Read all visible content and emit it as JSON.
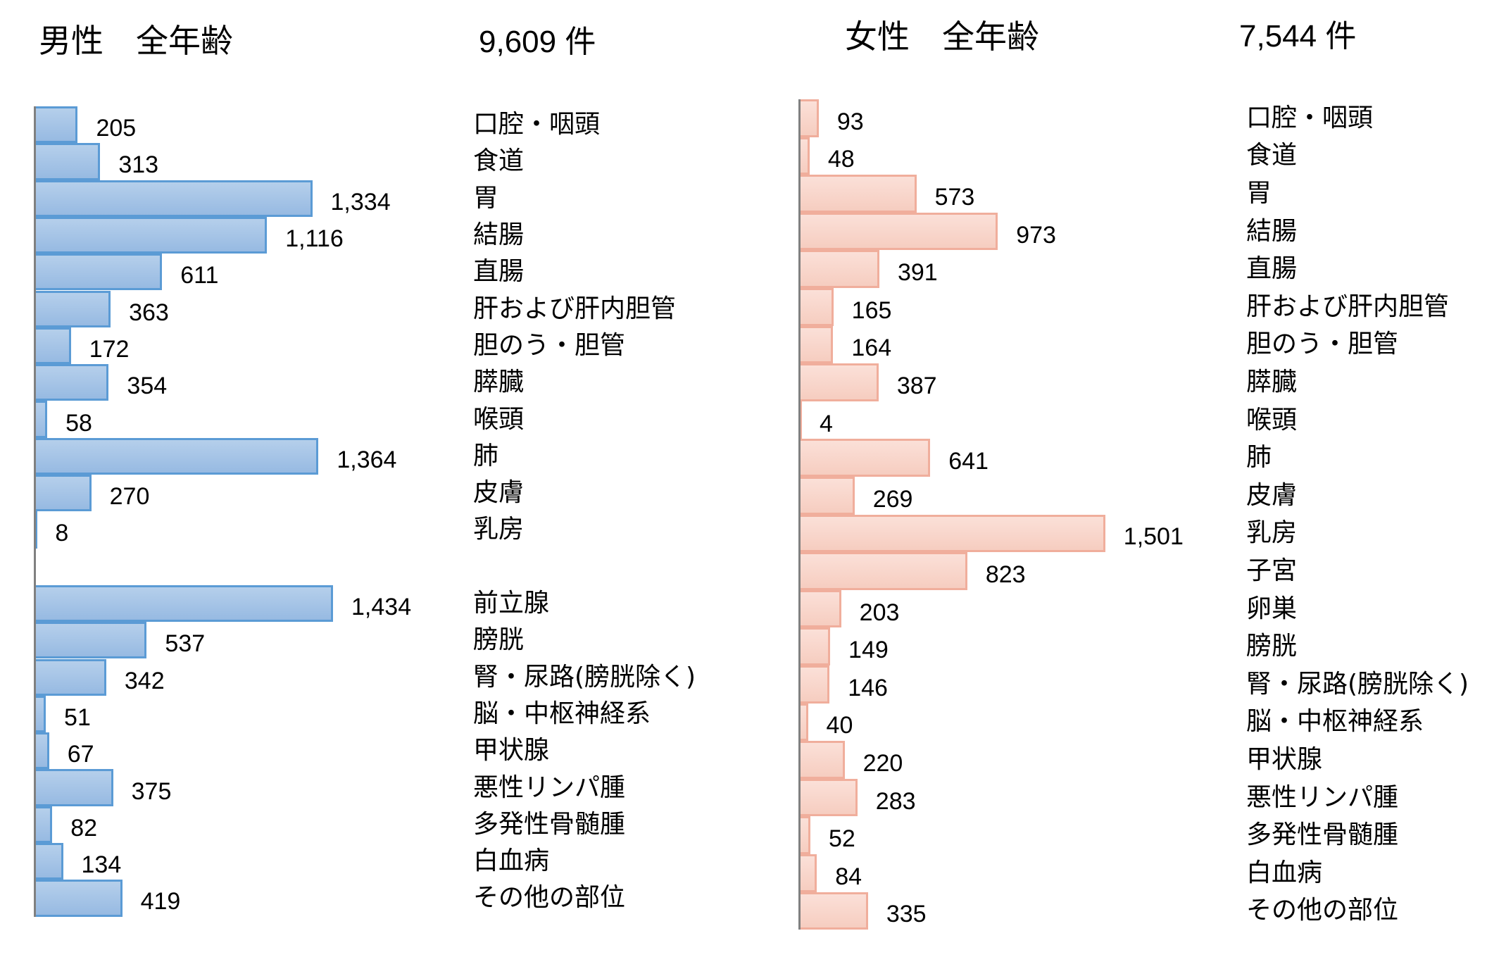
{
  "male": {
    "title": "男性　全年齢",
    "total": "9,609 件",
    "color_fill": "#a6c4e7",
    "color_border": "#5b9bd5"
  },
  "female": {
    "title": "女性　全年齢",
    "total": "7,544 件",
    "color_fill": "#f9d5ca",
    "color_border": "#f0ae9c"
  },
  "chart_data": [
    {
      "type": "bar",
      "orientation": "horizontal",
      "title": "男性 全年齢",
      "total": 9609,
      "categories": [
        "口腔・咽頭",
        "食道",
        "胃",
        "結腸",
        "直腸",
        "肝および肝内胆管",
        "胆のう・胆管",
        "膵臓",
        "喉頭",
        "肺",
        "皮膚",
        "乳房",
        "",
        "前立腺",
        "膀胱",
        "腎・尿路(膀胱除く)",
        "脳・中枢神経系",
        "甲状腺",
        "悪性リンパ腫",
        "多発性骨髄腫",
        "白血病",
        "その他の部位"
      ],
      "values": [
        205,
        313,
        1334,
        1116,
        611,
        363,
        172,
        354,
        58,
        1364,
        270,
        8,
        null,
        1434,
        537,
        342,
        51,
        67,
        375,
        82,
        134,
        419
      ],
      "labels": [
        "205",
        "313",
        "1,334",
        "1,116",
        "611",
        "363",
        "172",
        "354",
        "58",
        "1,364",
        "270",
        "8",
        "",
        "1,434",
        "537",
        "342",
        "51",
        "67",
        "375",
        "82",
        "134",
        "419"
      ],
      "xlabel": "",
      "ylabel": "",
      "grid": false,
      "legend": false
    },
    {
      "type": "bar",
      "orientation": "horizontal",
      "title": "女性 全年齢",
      "total": 7544,
      "categories": [
        "口腔・咽頭",
        "食道",
        "胃",
        "結腸",
        "直腸",
        "肝および肝内胆管",
        "胆のう・胆管",
        "膵臓",
        "喉頭",
        "肺",
        "皮膚",
        "乳房",
        "子宮",
        "卵巣",
        "膀胱",
        "腎・尿路(膀胱除く)",
        "脳・中枢神経系",
        "甲状腺",
        "悪性リンパ腫",
        "多発性骨髄腫",
        "白血病",
        "その他の部位"
      ],
      "values": [
        93,
        48,
        573,
        973,
        391,
        165,
        164,
        387,
        4,
        641,
        269,
        1501,
        823,
        203,
        149,
        146,
        40,
        220,
        283,
        52,
        84,
        335
      ],
      "labels": [
        "93",
        "48",
        "573",
        "973",
        "391",
        "165",
        "164",
        "387",
        "4",
        "641",
        "269",
        "1,501",
        "823",
        "203",
        "149",
        "146",
        "40",
        "220",
        "283",
        "52",
        "84",
        "335"
      ],
      "xlabel": "",
      "ylabel": "",
      "grid": false,
      "legend": false
    }
  ]
}
